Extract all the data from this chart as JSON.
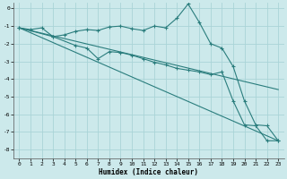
{
  "xlabel": "Humidex (Indice chaleur)",
  "xlim": [
    -0.5,
    23.5
  ],
  "ylim": [
    -8.5,
    0.3
  ],
  "yticks": [
    0,
    -1,
    -2,
    -3,
    -4,
    -5,
    -6,
    -7,
    -8
  ],
  "xticks": [
    0,
    1,
    2,
    3,
    4,
    5,
    6,
    7,
    8,
    9,
    10,
    11,
    12,
    13,
    14,
    15,
    16,
    17,
    18,
    19,
    20,
    21,
    22,
    23
  ],
  "bg_color": "#cce9eb",
  "grid_color": "#aad4d7",
  "line_color": "#2a7d7d",
  "line1": {
    "x": [
      0,
      1,
      2,
      3,
      4,
      5,
      6,
      7,
      8,
      9,
      10,
      11,
      12,
      13,
      14,
      15,
      16,
      17,
      18,
      19,
      20,
      21,
      22,
      23
    ],
    "y": [
      -1.1,
      -1.2,
      -1.1,
      -1.6,
      -1.5,
      -1.3,
      -1.2,
      -1.25,
      -1.05,
      -1.0,
      -1.15,
      -1.25,
      -1.0,
      -1.1,
      -0.55,
      0.25,
      -0.8,
      -2.0,
      -2.25,
      -3.3,
      -5.25,
      -6.6,
      -6.65,
      -7.5
    ],
    "markers": [
      0,
      1,
      2,
      3,
      4,
      5,
      6,
      7,
      8,
      9,
      10,
      11,
      12,
      13,
      14,
      15,
      16,
      17,
      18,
      19,
      20,
      21,
      22,
      23
    ]
  },
  "line2": {
    "x": [
      0,
      3,
      5,
      6,
      7,
      8,
      9,
      10,
      11,
      12,
      13,
      14,
      15,
      16,
      17,
      18,
      19,
      20,
      21,
      22,
      23
    ],
    "y": [
      -1.1,
      -1.6,
      -2.1,
      -2.25,
      -2.85,
      -2.45,
      -2.5,
      -2.65,
      -2.85,
      -3.05,
      -3.2,
      -3.4,
      -3.5,
      -3.6,
      -3.75,
      -3.6,
      -5.25,
      -6.6,
      -6.65,
      -7.5,
      -7.5
    ],
    "markers": [
      0,
      3,
      5,
      6,
      7,
      8,
      9,
      10,
      11,
      12,
      13,
      14,
      15,
      16,
      17,
      18,
      19,
      20,
      21,
      22,
      23
    ]
  },
  "line3": {
    "x": [
      0,
      23
    ],
    "y": [
      -1.1,
      -4.6
    ],
    "markers": []
  },
  "line4": {
    "x": [
      0,
      23
    ],
    "y": [
      -1.1,
      -7.5
    ],
    "markers": []
  }
}
